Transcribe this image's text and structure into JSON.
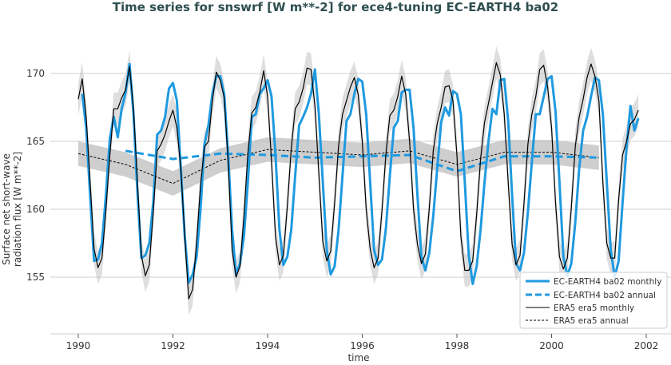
{
  "chart_data": {
    "type": "line",
    "title": "Time series for snswrf [W m**-2] for ece4-tuning EC-EARTH4 ba02",
    "xlabel": "time",
    "ylabel": [
      "Surface net short-wave",
      "radiation flux [W m**-2]"
    ],
    "xlim": [
      1989.4,
      2002.9
    ],
    "ylim": [
      150.6,
      173.5
    ],
    "xticks": [
      1990,
      1992,
      1994,
      1996,
      1998,
      2000,
      2002
    ],
    "yticks": [
      155,
      160,
      165,
      170
    ],
    "grid": "horizontal",
    "legend_position": "lower-right",
    "monthly_start_year": 1990,
    "series": [
      {
        "name": "EC-EARTH4 ba02 monthly",
        "color": "#1f9ae0",
        "style": "solid",
        "values": [
          null,
          168.5,
          166.0,
          161.0,
          156.2,
          156.3,
          157.5,
          161.0,
          165.2,
          166.8,
          165.3,
          167.4,
          168.6,
          170.7,
          167.0,
          161.2,
          156.4,
          156.6,
          157.5,
          160.5,
          165.5,
          165.8,
          166.8,
          168.9,
          169.3,
          168.0,
          163.0,
          158.0,
          154.6,
          155.2,
          156.5,
          160.0,
          164.8,
          166.2,
          168.5,
          169.8,
          169.8,
          168.5,
          164.0,
          158.5,
          155.2,
          156.0,
          158.0,
          162.0,
          166.8,
          167.0,
          168.5,
          168.9,
          169.5,
          168.3,
          164.0,
          158.5,
          155.9,
          156.5,
          158.5,
          162.5,
          166.2,
          166.8,
          167.5,
          168.5,
          170.3,
          167.0,
          162.0,
          157.0,
          155.2,
          155.8,
          158.5,
          162.5,
          166.5,
          167.0,
          168.5,
          169.6,
          169.4,
          167.0,
          162.0,
          157.0,
          155.9,
          156.3,
          158.6,
          162.5,
          166.0,
          166.5,
          168.6,
          168.8,
          168.8,
          166.0,
          161.0,
          156.5,
          155.5,
          156.8,
          159.5,
          163.0,
          166.4,
          167.5,
          166.9,
          168.7,
          168.5,
          167.0,
          162.0,
          156.6,
          154.5,
          155.8,
          158.5,
          162.0,
          165.0,
          167.4,
          167.0,
          169.5,
          169.6,
          166.5,
          161.0,
          156.0,
          155.5,
          156.8,
          159.8,
          163.5,
          167.0,
          167.0,
          168.3,
          169.6,
          169.8,
          167.2,
          162.0,
          156.5,
          155.1,
          156.0,
          159.0,
          163.0,
          165.8,
          166.8,
          168.3,
          169.7,
          169.5,
          167.0,
          162.0,
          157.0,
          155.0,
          156.2,
          160.5,
          164.5,
          167.6,
          165.8,
          166.7,
          null
        ]
      },
      {
        "name": "EC-EARTH4 ba02 annual",
        "color": "#1f9ae0",
        "style": "dashed",
        "x": [
          1991,
          1992,
          1993,
          1994,
          1995,
          1996,
          1997,
          1998,
          1999,
          2000,
          2001
        ],
        "values": [
          164.3,
          163.7,
          164.1,
          164.0,
          163.8,
          163.9,
          164.0,
          162.8,
          163.9,
          163.9,
          163.8
        ]
      },
      {
        "name": "ERA5 era5 monthly",
        "color": "#000000",
        "style": "solid",
        "values": [
          168.1,
          169.6,
          166.8,
          162.0,
          157.1,
          155.7,
          156.4,
          159.9,
          164.0,
          167.4,
          167.4,
          168.2,
          168.8,
          170.5,
          167.4,
          162.0,
          156.6,
          155.1,
          155.9,
          159.7,
          164.3,
          164.8,
          165.5,
          166.5,
          167.3,
          166.0,
          163.0,
          158.0,
          153.4,
          154.1,
          157.6,
          161.8,
          164.6,
          165.0,
          168.0,
          170.1,
          169.5,
          168.2,
          163.5,
          157.0,
          155.0,
          155.8,
          159.5,
          164.1,
          167.1,
          167.5,
          168.6,
          170.2,
          168.3,
          163.5,
          158.0,
          155.9,
          156.6,
          160.2,
          164.5,
          167.4,
          167.9,
          168.9,
          170.4,
          170.3,
          167.6,
          162.6,
          157.6,
          156.2,
          156.9,
          160.5,
          164.7,
          167.0,
          168.0,
          169.0,
          169.7,
          168.4,
          165.0,
          160.0,
          157.1,
          155.7,
          156.4,
          159.9,
          164.1,
          166.9,
          167.3,
          168.3,
          169.8,
          168.5,
          165.0,
          160.0,
          157.4,
          156.0,
          156.7,
          160.1,
          164.3,
          166.3,
          167.5,
          169.0,
          169.1,
          168.0,
          164.0,
          158.0,
          155.5,
          155.5,
          156.2,
          159.6,
          163.7,
          166.4,
          167.8,
          169.3,
          170.8,
          169.9,
          167.0,
          162.0,
          157.4,
          155.9,
          156.6,
          160.4,
          164.8,
          167.0,
          168.3,
          170.3,
          170.6,
          169.0,
          166.0,
          160.5,
          156.5,
          155.6,
          156.4,
          160.1,
          164.6,
          166.8,
          168.1,
          169.7,
          170.7,
          169.8,
          168.0,
          162.0,
          157.5,
          156.4,
          156.4,
          160.7,
          164.0,
          165.0,
          166.3,
          166.6,
          167.3,
          null
        ]
      },
      {
        "name": "ERA5 era5 annual",
        "color": "#000000",
        "style": "dashed",
        "x": [
          1990,
          1991,
          1992,
          1993,
          1994,
          1995,
          1996,
          1997,
          1998,
          1999,
          2000,
          2001
        ],
        "values": [
          164.1,
          163.3,
          161.9,
          163.6,
          164.4,
          164.2,
          164.0,
          164.3,
          163.3,
          164.2,
          164.2,
          163.8
        ]
      }
    ],
    "uncertainty_bands": {
      "monthly_spread": 1.2,
      "annual_spread": 0.9,
      "color": "#bdbdbd"
    }
  }
}
